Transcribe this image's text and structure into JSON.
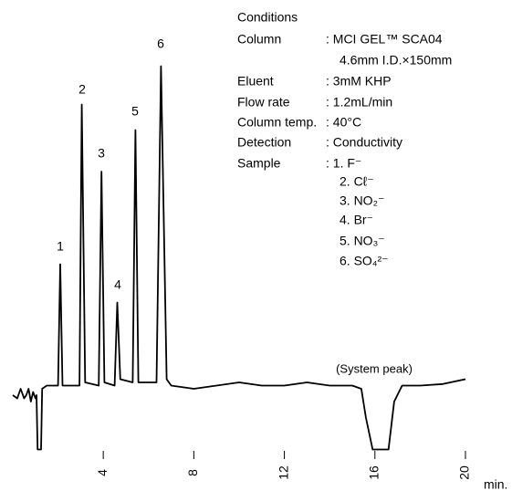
{
  "chart_data": {
    "type": "line",
    "x": [
      0,
      0.2,
      0.35,
      0.5,
      0.6,
      0.7,
      0.8,
      0.9,
      1.0,
      1.05,
      1.1,
      1.25,
      1.3,
      1.5,
      2.0,
      2.1,
      2.2,
      2.95,
      3.05,
      3.2,
      3.8,
      3.92,
      4.05,
      4.5,
      4.62,
      4.75,
      5.3,
      5.42,
      5.55,
      6.35,
      6.55,
      6.8,
      7,
      8,
      9,
      10,
      11,
      12,
      13,
      14,
      15,
      15.4,
      15.6,
      15.9,
      16.6,
      16.85,
      17.2,
      18,
      19,
      20
    ],
    "values": [
      -3,
      -4,
      -1,
      -4,
      -3,
      -1,
      -5,
      -2,
      -4,
      -3,
      -20,
      -20,
      -1,
      0,
      0,
      38,
      0,
      0,
      88,
      1,
      0,
      67,
      1,
      0,
      26,
      2,
      1,
      80,
      1,
      1,
      100,
      2,
      0,
      -1,
      0,
      1,
      0,
      0,
      1,
      0,
      0,
      -1,
      -10,
      -20,
      -20,
      -5,
      0,
      0,
      0.5,
      2
    ],
    "color": "#000000",
    "xlim": [
      -0.2,
      21
    ],
    "xticks": [
      4,
      8,
      12,
      16,
      20
    ],
    "x_label": "min.",
    "ylim": [
      -25,
      105
    ],
    "peak_labels": [
      "1",
      "2",
      "3",
      "4",
      "5",
      "6"
    ],
    "system_peak_label": "(System peak)"
  },
  "conditions": {
    "heading": "Conditions",
    "rows": [
      [
        "Column",
        ": MCI GEL™ SCA04"
      ],
      [
        "",
        "4.6mm I.D.×150mm"
      ],
      [
        "Eluent",
        ": 3mM KHP"
      ],
      [
        "Flow rate",
        ": 1.2mL/min"
      ],
      [
        "Column temp.",
        ": 40°C"
      ],
      [
        "Detection",
        ": Conductivity"
      ],
      [
        "Sample",
        ": 1. F⁻"
      ],
      [
        "",
        "2. Cℓ⁻"
      ],
      [
        "",
        "3. NO₂⁻"
      ],
      [
        "",
        "4. Br⁻"
      ],
      [
        "",
        "5. NO₃⁻"
      ],
      [
        "",
        "6. SO₄²⁻"
      ]
    ]
  }
}
